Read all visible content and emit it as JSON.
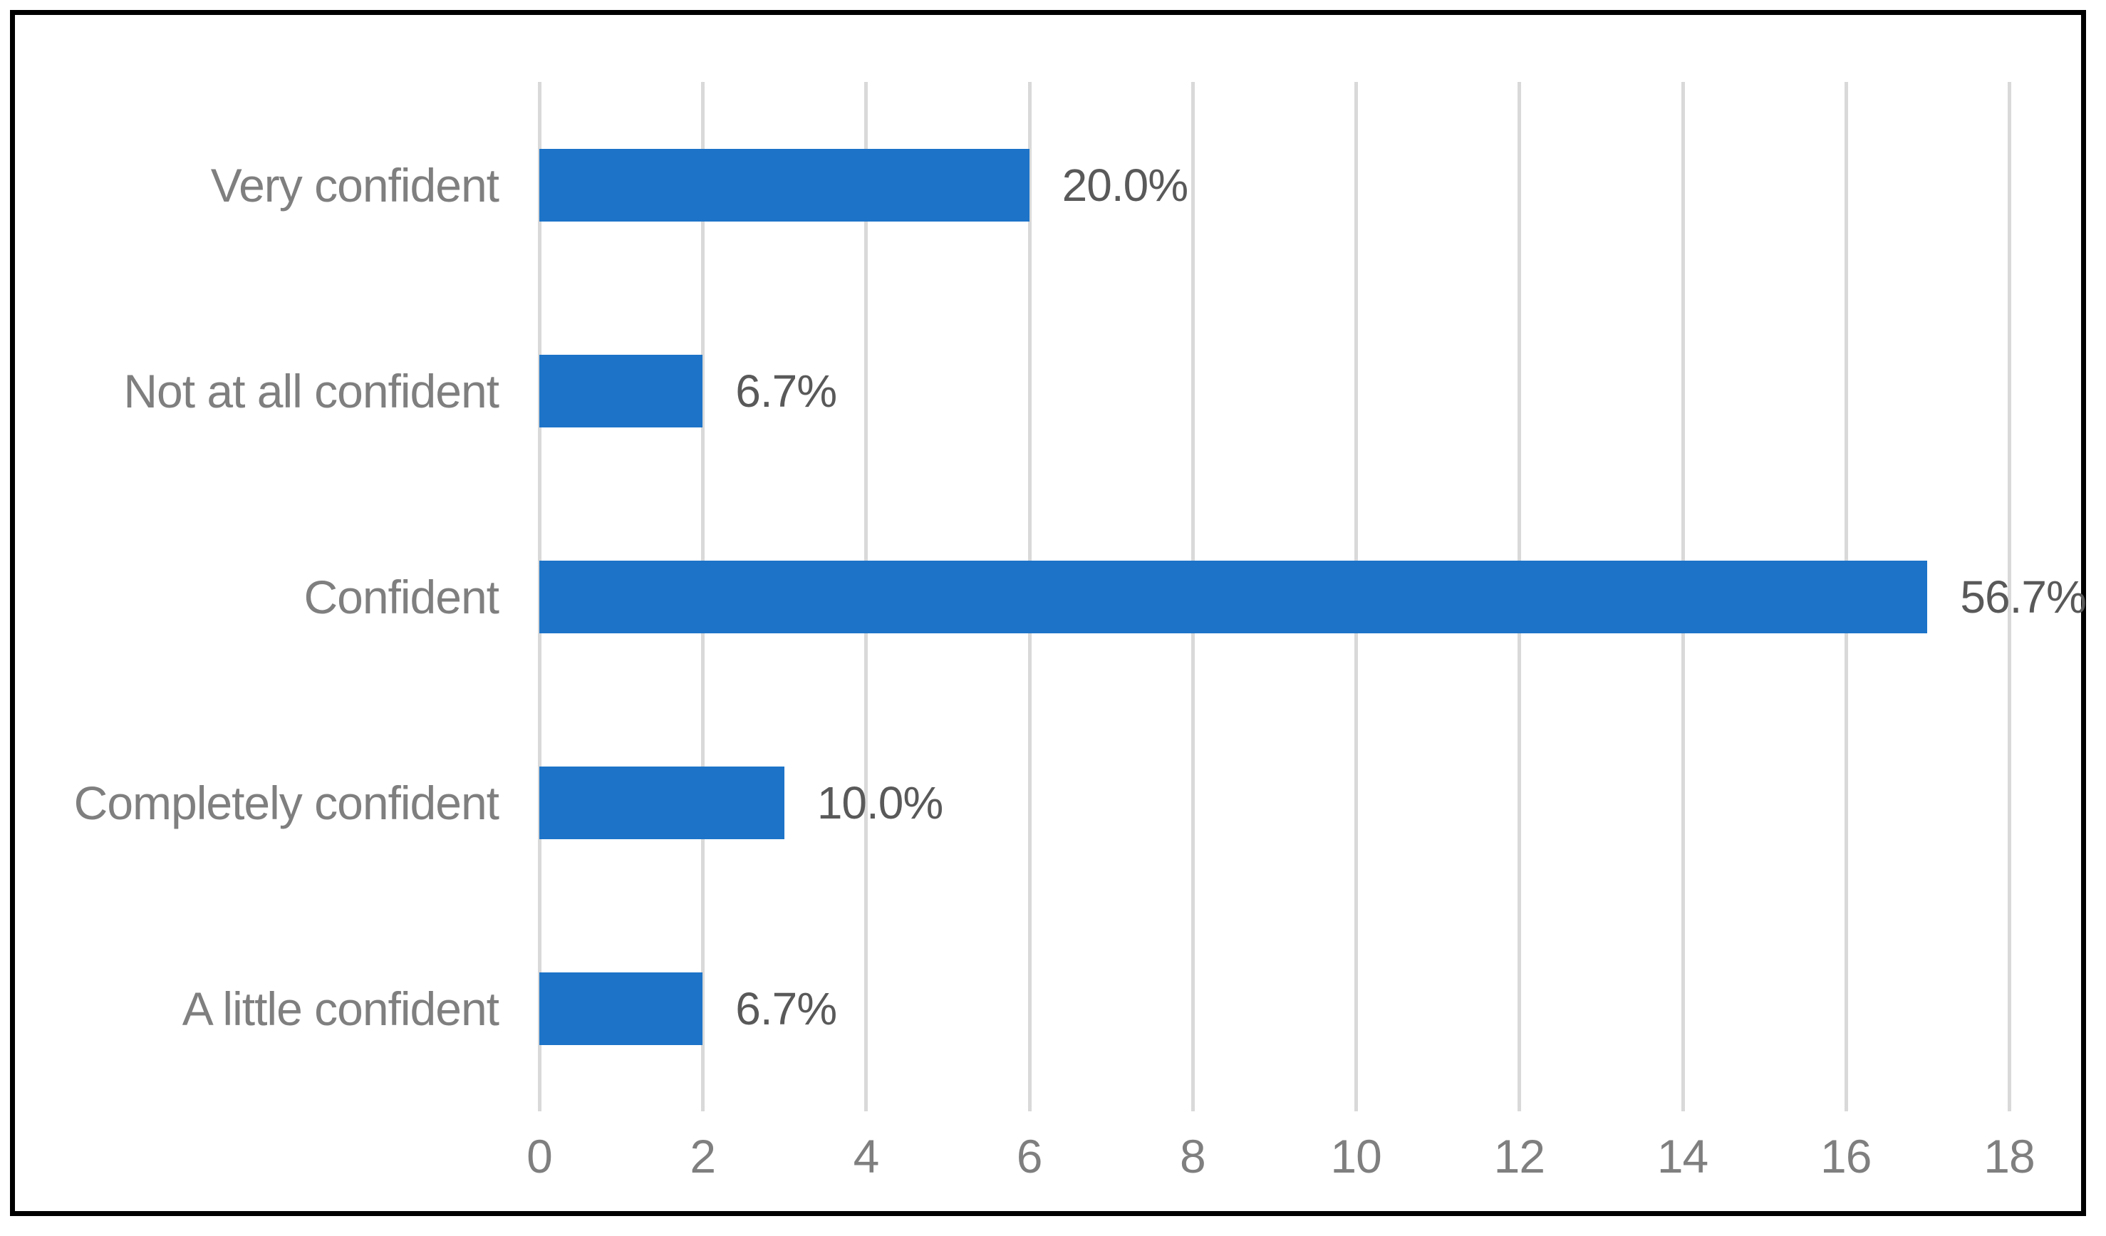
{
  "figure": {
    "background_color": "#FFFFFF",
    "border_color": "#000000"
  },
  "chart_data": {
    "type": "bar",
    "orientation": "horizontal",
    "title": "",
    "xlabel": "",
    "ylabel": "",
    "categories": [
      "Very confident",
      "Not at all confident",
      "Confident",
      "Completely confident",
      "A little confident"
    ],
    "values": [
      6,
      2,
      17,
      3,
      2
    ],
    "value_labels": [
      "20.0%",
      "6.7%",
      "56.7%",
      "10.0%",
      "6.7%"
    ],
    "series_name": "",
    "xlim": [
      0,
      18
    ],
    "x_ticks": [
      "0",
      "2",
      "4",
      "6",
      "8",
      "10",
      "12",
      "14",
      "16",
      "18"
    ],
    "grid": "vertical-gridlines-only",
    "legend": "none",
    "colors": {
      "bar": "#1C73C8",
      "gridline": "#D9D9D9",
      "category_label": "#7F7F7F",
      "tick_label": "#7F7F7F",
      "value_label": "#595959"
    }
  }
}
